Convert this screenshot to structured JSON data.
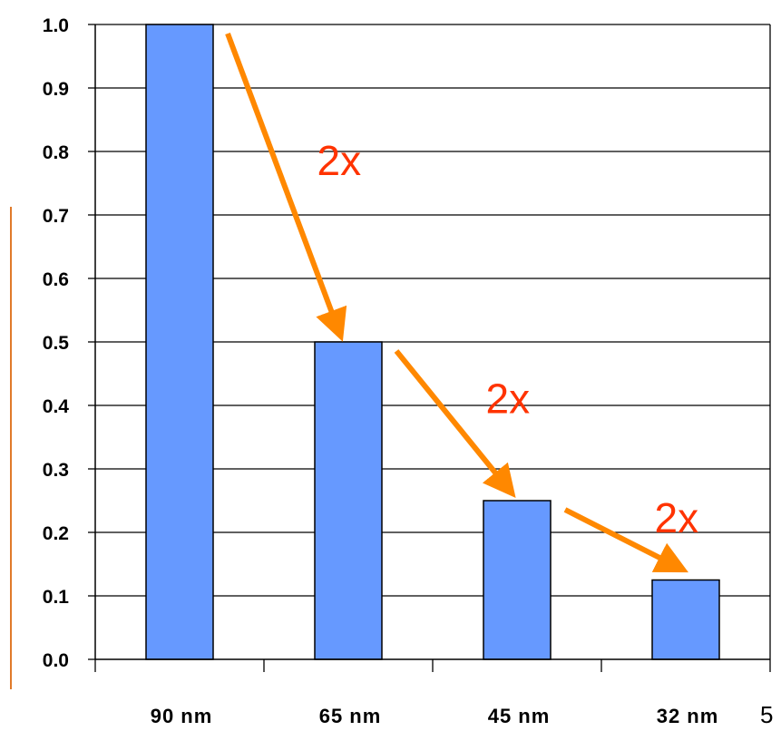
{
  "chart_data": {
    "type": "bar",
    "categories": [
      "90 nm",
      "65 nm",
      "45 nm",
      "32 nm"
    ],
    "values": [
      1.0,
      0.5,
      0.25,
      0.125
    ],
    "ylim": [
      0,
      1.0
    ],
    "yticks": [
      "0.0",
      "0.1",
      "0.2",
      "0.3",
      "0.4",
      "0.5",
      "0.6",
      "0.7",
      "0.8",
      "0.9",
      "1.0"
    ],
    "title": "",
    "xlabel": "",
    "ylabel": "",
    "grid": true,
    "bar_color": "#6699ff",
    "annotations": [
      {
        "text": "2x",
        "from": "90 nm",
        "to": "65 nm"
      },
      {
        "text": "2x",
        "from": "65 nm",
        "to": "45 nm"
      },
      {
        "text": "2x",
        "from": "45 nm",
        "to": "32 nm"
      }
    ],
    "arrow_color": "#ff8800",
    "annotation_color": "#ff3300"
  },
  "page_number": "5"
}
